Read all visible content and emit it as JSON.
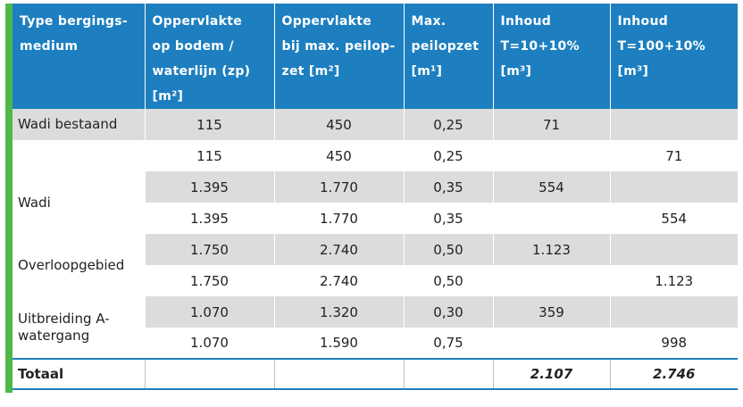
{
  "header": {
    "col1": [
      "Type bergings-",
      "medium"
    ],
    "col2": [
      "Oppervlakte",
      "op bodem /",
      "waterlijn (zp)",
      "[m²]"
    ],
    "col3": [
      "Oppervlakte",
      "bij max. peilop-",
      "zet [m²]"
    ],
    "col4": [
      "Max.",
      "peilopzet",
      "[m¹]"
    ],
    "col5": [
      "Inhoud",
      "T=10+10%",
      "[m³]"
    ],
    "col6": [
      "Inhoud",
      "T=100+10%",
      "[m³]"
    ]
  },
  "groups": [
    {
      "label": "Wadi bestaand",
      "rows": [
        [
          "115",
          "450",
          "0,25",
          "71",
          ""
        ],
        [
          "115",
          "450",
          "0,25",
          "",
          "71"
        ]
      ]
    },
    {
      "label": "Wadi",
      "rows": [
        [
          "1.395",
          "1.770",
          "0,35",
          "554",
          ""
        ],
        [
          "1.395",
          "1.770",
          "0,35",
          "",
          "554"
        ]
      ]
    },
    {
      "label": "Overloopgebied",
      "rows": [
        [
          "1.750",
          "2.740",
          "0,50",
          "1.123",
          ""
        ],
        [
          "1.750",
          "2.740",
          "0,50",
          "",
          "1.123"
        ]
      ]
    },
    {
      "label": "Uitbreiding A-watergang",
      "rows": [
        [
          "1.070",
          "1.320",
          "0,30",
          "359",
          ""
        ],
        [
          "1.070",
          "1.590",
          "0,75",
          "",
          "998"
        ]
      ]
    }
  ],
  "total": {
    "label": "Totaal",
    "values": [
      "",
      "",
      "",
      "2.107",
      "2.746"
    ]
  },
  "colors": {
    "header_bg": "#1d7fc0",
    "accent_bar": "#4fb848",
    "row_shade": "#dcdcdc"
  }
}
